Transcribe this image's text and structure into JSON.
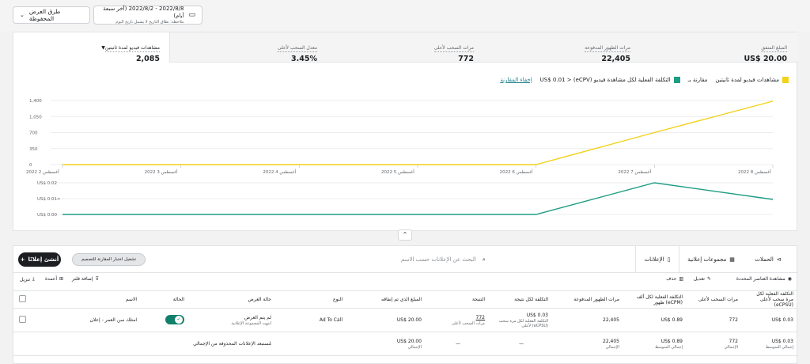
{
  "header": {
    "date_range": "2022/8/8 - 2022/8/2 (آخر سبعة أيام)",
    "date_note": "ملاحظة: نطاق التاريخ لا يشمل تاريخ اليوم",
    "saved_views": "طرق العرض المحفوظة",
    "calendar_icon": "calendar-icon",
    "chevron_icon": "chevron-down-icon"
  },
  "metrics": [
    {
      "label": "المبلغ المنفق",
      "value": "US$ 20.00"
    },
    {
      "label": "مرات الظهور المدفوعة",
      "value": "22,405"
    },
    {
      "label": "مرات السحب لأعلى",
      "value": "772"
    },
    {
      "label": "معدل السحب لأعلى",
      "value": "3.45%"
    },
    {
      "label": "مشاهدات فيديو لمدة ثانيتين",
      "value": "2,085"
    }
  ],
  "legend": {
    "series1": "مشاهدات فيديو لمدة ثانيتين",
    "compare": "مقارنة بـ",
    "series2": "التكلفة الفعلية لكل مشاهدة فيديو (eCPV)",
    "series2_value": "US$ 0.01 >",
    "hide_compare": "إخفاء المقارنة"
  },
  "colors": {
    "series1": "#f2d21b",
    "series2": "#1f9d84",
    "accent": "#1a7f8a"
  },
  "chart_data": [
    {
      "type": "line",
      "x": [
        "2 أغسطس 2022",
        "3 أغسطس 2022",
        "4 أغسطس 2022",
        "5 أغسطس 2022",
        "6 أغسطس 2022",
        "7 أغسطس 2022",
        "8 أغسطس 2022"
      ],
      "x_ticks_display": [
        "2022 أغسطس 2",
        "2022 أغسطس 3",
        "2022 أغسطس 4",
        "2022 أغسطس 5",
        "2022 أغسطس 6",
        "2022 أغسطس 7",
        "2022 أغسطس 8"
      ],
      "y_ticks": [
        "0",
        "350",
        "700",
        "1,050",
        "1,400"
      ],
      "ylim": [
        0,
        1400
      ],
      "series": [
        {
          "name": "مشاهدات فيديو لمدة ثانيتين",
          "values": [
            0,
            0,
            0,
            0,
            0,
            700,
            1385
          ]
        }
      ],
      "grid": true
    },
    {
      "type": "line",
      "x": [
        "2 أغسطس 2022",
        "3 أغسطس 2022",
        "4 أغسطس 2022",
        "5 أغسطس 2022",
        "6 أغسطس 2022",
        "7 أغسطس 2022",
        "8 أغسطس 2022"
      ],
      "y_ticks": [
        "US$ 0.00",
        "US$ 0.01>",
        "US$ 0.02"
      ],
      "ylim": [
        0,
        0.02
      ],
      "series": [
        {
          "name": "التكلفة الفعلية لكل مشاهدة فيديو (eCPV)",
          "values": [
            0,
            0,
            0,
            0,
            0,
            0.02,
            0.0095
          ]
        }
      ],
      "grid": true
    }
  ],
  "tabs": [
    {
      "label": "الحملات",
      "icon": "folder-icon"
    },
    {
      "label": "مجموعات إعلانية",
      "icon": "grid-icon"
    },
    {
      "label": "الإعلانات",
      "icon": "ad-icon"
    }
  ],
  "search_placeholder": "البحث عن الإعلانات حسب الاسم",
  "compare_btn": "تشغيل اختبار المقارنة للتصميم",
  "create_btn": "أنشئ إعلانًا",
  "toolbar": {
    "view_selected": "مشاهدة العناصر المحددة",
    "edit": "تعديل",
    "delete": "حذف",
    "add_filter": "إضافة فلتر",
    "columns": "أعمدة",
    "download": "تنزيل"
  },
  "table": {
    "headers": [
      "الاسم",
      "الحالة",
      "حالة العرض",
      "النوع",
      "المبلغ الذي تم إنفاقه",
      "النتيجة",
      "التكلفة لكل نتيجة",
      "التكلفة الفعلية لكل ألف ظهور (eCPM)",
      "مرات الظهور المدفوعة",
      "مرات السحب لأعلى",
      "التكلفة الفعلية لكل مرة سحب لأعلى (eCPSU)"
    ],
    "row": {
      "name": "امتلك سن العمر - إعلان",
      "delivery": "لم يتم العرض",
      "delivery_sub": "انتهت المجموعة الإعلانية",
      "type": "Ad To Call",
      "spend": "US$ 20.00",
      "result": "772",
      "result_sub": "مرات السحب لأعلى",
      "cost_per_result": "US$ 0.03",
      "cost_per_result_sub": "التكلفة الفعلية لكل مرة سحب لأعلى (eCPSU)",
      "impressions": "22,405",
      "ecpm": "US$ 0.89",
      "swipes": "772",
      "ecpsu": "US$ 0.03"
    },
    "totals": {
      "label": "مُستبعد الإعلانات المحذوفة من الإجمالي",
      "spend": "US$ 20.00",
      "spend_sub": "الإجمالي",
      "result": "—",
      "cost_per_result": "—",
      "impressions": "22,405",
      "impressions_sub": "الإجمالي",
      "ecpm": "US$ 0.89",
      "ecpm_sub": "إجمالي المتوسط",
      "swipes": "772",
      "swipes_sub": "الإجمالي",
      "ecpsu": "US$ 0.03",
      "ecpsu_sub": "إجمالي المتوسط"
    }
  }
}
